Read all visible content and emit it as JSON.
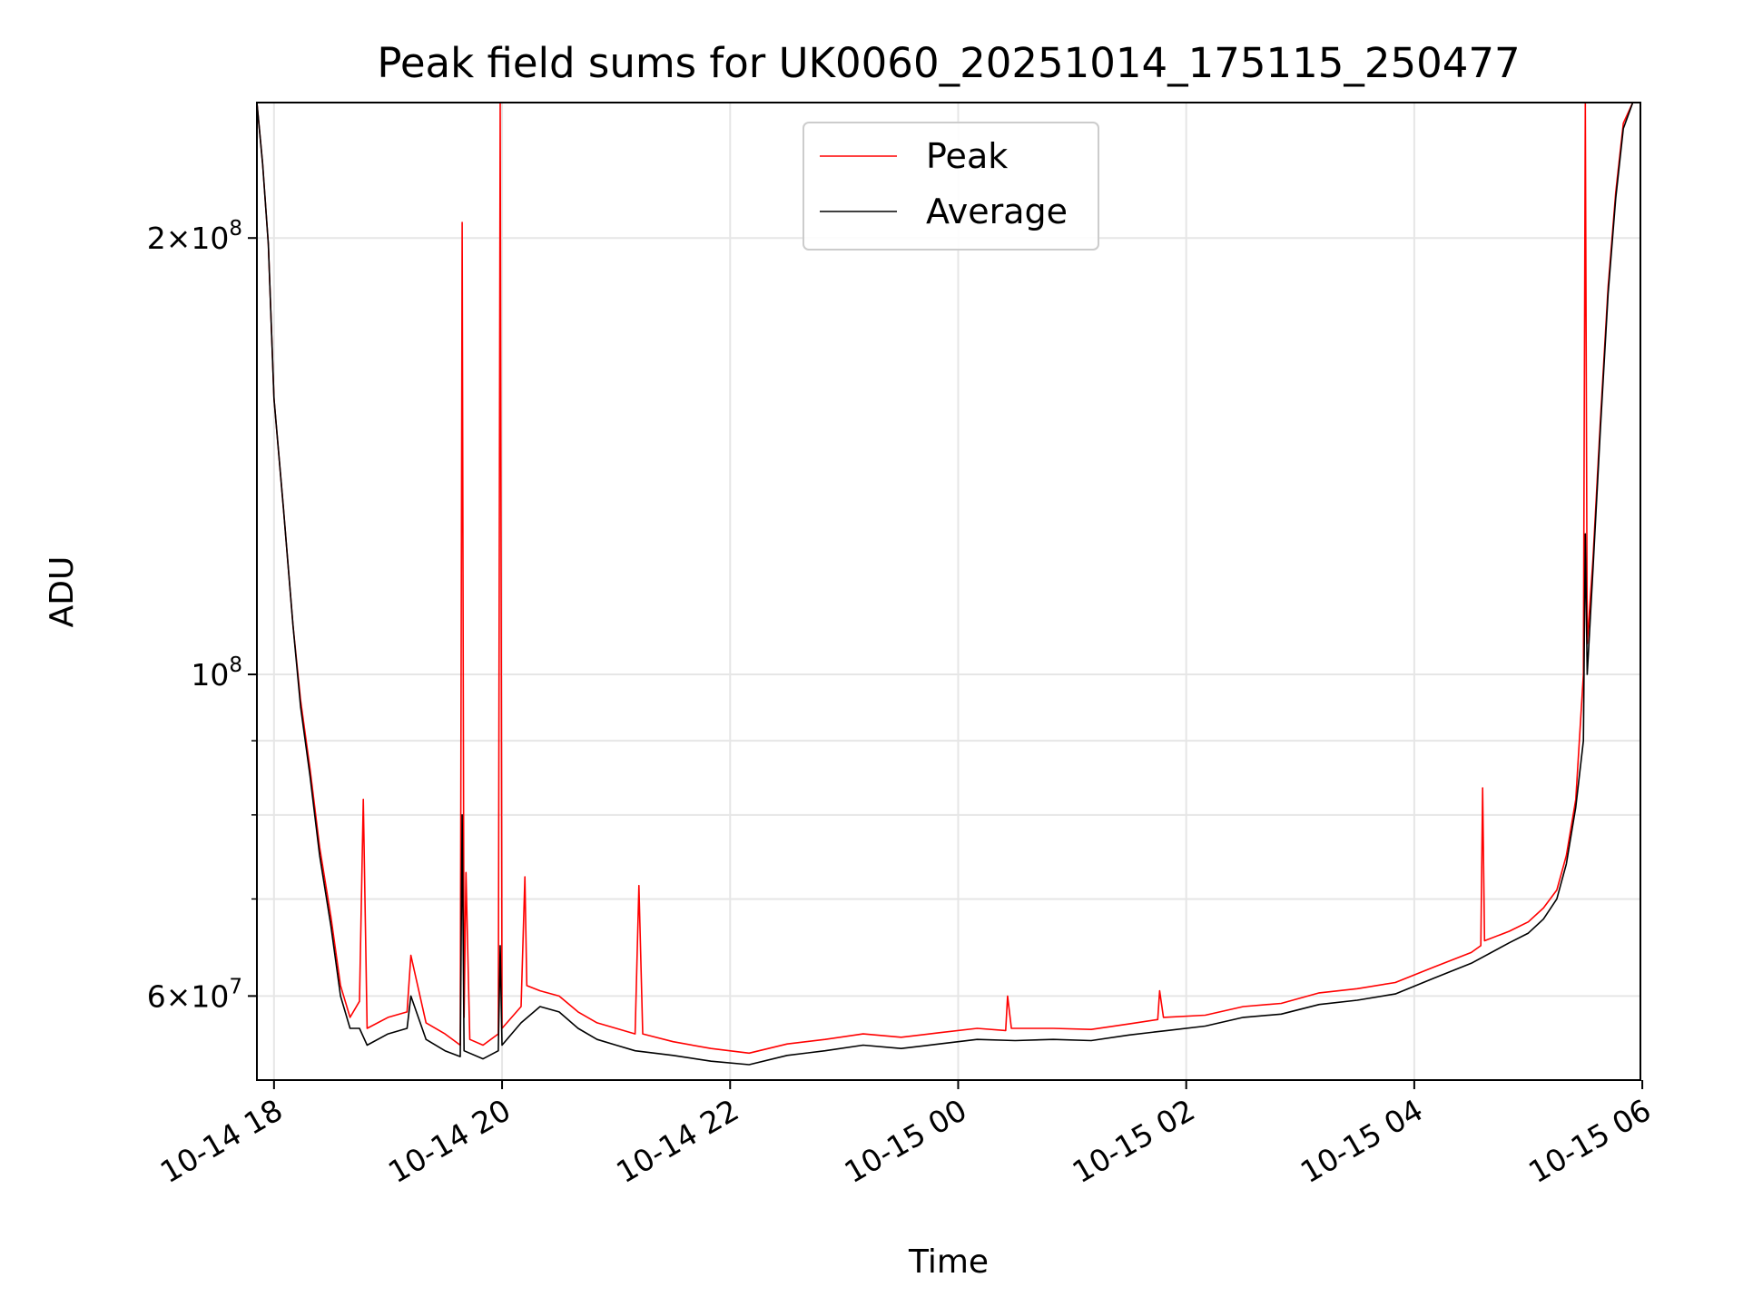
{
  "chart_data": {
    "type": "line",
    "title": "Peak field sums for UK0060_20251014_175115_250477",
    "xlabel": "Time",
    "ylabel": "ADU",
    "x_axis": {
      "kind": "time",
      "range": [
        "2025-10-14 17:51",
        "2025-10-15 05:59"
      ],
      "ticks": [
        {
          "t": "2025-10-14 18:00",
          "label": "10-14 18"
        },
        {
          "t": "2025-10-14 20:00",
          "label": "10-14 20"
        },
        {
          "t": "2025-10-14 22:00",
          "label": "10-14 22"
        },
        {
          "t": "2025-10-15 00:00",
          "label": "10-15 00"
        },
        {
          "t": "2025-10-15 02:00",
          "label": "10-15 02"
        },
        {
          "t": "2025-10-15 04:00",
          "label": "10-15 04"
        },
        {
          "t": "2025-10-15 06:00",
          "label": "10-15 06"
        }
      ]
    },
    "y_axis": {
      "scale": "log",
      "range": [
        52500000,
        248000000
      ],
      "major_ticks": [
        {
          "v": 60000000,
          "mantissa": "6",
          "exp": "7"
        },
        {
          "v": 100000000,
          "mantissa": "",
          "exp": "8"
        },
        {
          "v": 200000000,
          "mantissa": "2",
          "exp": "8"
        }
      ],
      "minor_ticks": [
        70000000,
        80000000,
        90000000
      ]
    },
    "grid": true,
    "legend_position": "top-center",
    "series": [
      {
        "name": "Peak",
        "color": "#ff0000",
        "points": [
          [
            "2025-10-14 17:51",
            248000000
          ],
          [
            "2025-10-14 17:54",
            225000000
          ],
          [
            "2025-10-14 17:57",
            198000000
          ],
          [
            "2025-10-14 18:00",
            155000000
          ],
          [
            "2025-10-14 18:05",
            130000000
          ],
          [
            "2025-10-14 18:10",
            108000000
          ],
          [
            "2025-10-14 18:14",
            96000000
          ],
          [
            "2025-10-14 18:19",
            86000000
          ],
          [
            "2025-10-14 18:24",
            76000000
          ],
          [
            "2025-10-14 18:30",
            68000000
          ],
          [
            "2025-10-14 18:35",
            61000000
          ],
          [
            "2025-10-14 18:40",
            58000000
          ],
          [
            "2025-10-14 18:45",
            59500000
          ],
          [
            "2025-10-14 18:47",
            82000000
          ],
          [
            "2025-10-14 18:49",
            57000000
          ],
          [
            "2025-10-14 19:00",
            58000000
          ],
          [
            "2025-10-14 19:10",
            58500000
          ],
          [
            "2025-10-14 19:12",
            64000000
          ],
          [
            "2025-10-14 19:20",
            57500000
          ],
          [
            "2025-10-14 19:30",
            56500000
          ],
          [
            "2025-10-14 19:38",
            55500000
          ],
          [
            "2025-10-14 19:39",
            205000000
          ],
          [
            "2025-10-14 19:40",
            58000000
          ],
          [
            "2025-10-14 19:41",
            73000000
          ],
          [
            "2025-10-14 19:43",
            56000000
          ],
          [
            "2025-10-14 19:50",
            55500000
          ],
          [
            "2025-10-14 19:58",
            56500000
          ],
          [
            "2025-10-14 19:59",
            248000000
          ],
          [
            "2025-10-14 20:00",
            57000000
          ],
          [
            "2025-10-14 20:10",
            59000000
          ],
          [
            "2025-10-14 20:12",
            72500000
          ],
          [
            "2025-10-14 20:13",
            61000000
          ],
          [
            "2025-10-14 20:20",
            60500000
          ],
          [
            "2025-10-14 20:30",
            60000000
          ],
          [
            "2025-10-14 20:40",
            58500000
          ],
          [
            "2025-10-14 20:50",
            57500000
          ],
          [
            "2025-10-14 21:00",
            57000000
          ],
          [
            "2025-10-14 21:10",
            56500000
          ],
          [
            "2025-10-14 21:12",
            71500000
          ],
          [
            "2025-10-14 21:14",
            56500000
          ],
          [
            "2025-10-14 21:30",
            55800000
          ],
          [
            "2025-10-14 21:50",
            55200000
          ],
          [
            "2025-10-14 22:10",
            54800000
          ],
          [
            "2025-10-14 22:30",
            55600000
          ],
          [
            "2025-10-14 22:50",
            56000000
          ],
          [
            "2025-10-14 23:10",
            56500000
          ],
          [
            "2025-10-14 23:30",
            56200000
          ],
          [
            "2025-10-14 23:50",
            56600000
          ],
          [
            "2025-10-15 00:10",
            57000000
          ],
          [
            "2025-10-15 00:25",
            56800000
          ],
          [
            "2025-10-15 00:26",
            60000000
          ],
          [
            "2025-10-15 00:28",
            57000000
          ],
          [
            "2025-10-15 00:50",
            57000000
          ],
          [
            "2025-10-15 01:10",
            56900000
          ],
          [
            "2025-10-15 01:30",
            57400000
          ],
          [
            "2025-10-15 01:45",
            57800000
          ],
          [
            "2025-10-15 01:46",
            60500000
          ],
          [
            "2025-10-15 01:48",
            58000000
          ],
          [
            "2025-10-15 02:10",
            58200000
          ],
          [
            "2025-10-15 02:30",
            59000000
          ],
          [
            "2025-10-15 02:50",
            59300000
          ],
          [
            "2025-10-15 03:10",
            60300000
          ],
          [
            "2025-10-15 03:30",
            60700000
          ],
          [
            "2025-10-15 03:50",
            61300000
          ],
          [
            "2025-10-15 04:10",
            62800000
          ],
          [
            "2025-10-15 04:30",
            64300000
          ],
          [
            "2025-10-15 04:35",
            65000000
          ],
          [
            "2025-10-15 04:36",
            83500000
          ],
          [
            "2025-10-15 04:37",
            65500000
          ],
          [
            "2025-10-15 04:50",
            66500000
          ],
          [
            "2025-10-15 05:00",
            67500000
          ],
          [
            "2025-10-15 05:08",
            69000000
          ],
          [
            "2025-10-15 05:15",
            71000000
          ],
          [
            "2025-10-15 05:20",
            75000000
          ],
          [
            "2025-10-15 05:25",
            82000000
          ],
          [
            "2025-10-15 05:29",
            100000000
          ],
          [
            "2025-10-15 05:30",
            248000000
          ],
          [
            "2025-10-15 05:31",
            105000000
          ],
          [
            "2025-10-15 05:34",
            120000000
          ],
          [
            "2025-10-15 05:38",
            150000000
          ],
          [
            "2025-10-15 05:42",
            185000000
          ],
          [
            "2025-10-15 05:46",
            215000000
          ],
          [
            "2025-10-15 05:50",
            240000000
          ],
          [
            "2025-10-15 05:55",
            248000000
          ],
          [
            "2025-10-15 05:59",
            248000000
          ]
        ]
      },
      {
        "name": "Average",
        "color": "#000000",
        "points": [
          [
            "2025-10-14 17:51",
            248000000
          ],
          [
            "2025-10-14 17:54",
            225000000
          ],
          [
            "2025-10-14 17:57",
            198000000
          ],
          [
            "2025-10-14 18:00",
            155000000
          ],
          [
            "2025-10-14 18:05",
            130000000
          ],
          [
            "2025-10-14 18:10",
            108000000
          ],
          [
            "2025-10-14 18:14",
            95000000
          ],
          [
            "2025-10-14 18:19",
            85000000
          ],
          [
            "2025-10-14 18:24",
            75000000
          ],
          [
            "2025-10-14 18:30",
            67000000
          ],
          [
            "2025-10-14 18:35",
            60000000
          ],
          [
            "2025-10-14 18:40",
            57000000
          ],
          [
            "2025-10-14 18:45",
            57000000
          ],
          [
            "2025-10-14 18:49",
            55500000
          ],
          [
            "2025-10-14 19:00",
            56500000
          ],
          [
            "2025-10-14 19:10",
            57000000
          ],
          [
            "2025-10-14 19:12",
            60000000
          ],
          [
            "2025-10-14 19:20",
            56000000
          ],
          [
            "2025-10-14 19:30",
            55000000
          ],
          [
            "2025-10-14 19:38",
            54500000
          ],
          [
            "2025-10-14 19:39",
            80000000
          ],
          [
            "2025-10-14 19:40",
            55000000
          ],
          [
            "2025-10-14 19:50",
            54300000
          ],
          [
            "2025-10-14 19:58",
            55000000
          ],
          [
            "2025-10-14 19:59",
            65000000
          ],
          [
            "2025-10-14 20:00",
            55500000
          ],
          [
            "2025-10-14 20:10",
            57500000
          ],
          [
            "2025-10-14 20:20",
            59000000
          ],
          [
            "2025-10-14 20:30",
            58500000
          ],
          [
            "2025-10-14 20:40",
            57000000
          ],
          [
            "2025-10-14 20:50",
            56000000
          ],
          [
            "2025-10-14 21:00",
            55500000
          ],
          [
            "2025-10-14 21:10",
            55000000
          ],
          [
            "2025-10-14 21:30",
            54600000
          ],
          [
            "2025-10-14 21:50",
            54100000
          ],
          [
            "2025-10-14 22:10",
            53800000
          ],
          [
            "2025-10-14 22:30",
            54600000
          ],
          [
            "2025-10-14 22:50",
            55000000
          ],
          [
            "2025-10-14 23:10",
            55500000
          ],
          [
            "2025-10-14 23:30",
            55200000
          ],
          [
            "2025-10-14 23:50",
            55600000
          ],
          [
            "2025-10-15 00:10",
            56000000
          ],
          [
            "2025-10-15 00:30",
            55900000
          ],
          [
            "2025-10-15 00:50",
            56000000
          ],
          [
            "2025-10-15 01:10",
            55900000
          ],
          [
            "2025-10-15 01:30",
            56400000
          ],
          [
            "2025-10-15 01:50",
            56800000
          ],
          [
            "2025-10-15 02:10",
            57200000
          ],
          [
            "2025-10-15 02:30",
            58000000
          ],
          [
            "2025-10-15 02:50",
            58300000
          ],
          [
            "2025-10-15 03:10",
            59200000
          ],
          [
            "2025-10-15 03:30",
            59600000
          ],
          [
            "2025-10-15 03:50",
            60200000
          ],
          [
            "2025-10-15 04:10",
            61700000
          ],
          [
            "2025-10-15 04:30",
            63200000
          ],
          [
            "2025-10-15 04:50",
            65300000
          ],
          [
            "2025-10-15 05:00",
            66300000
          ],
          [
            "2025-10-15 05:08",
            67800000
          ],
          [
            "2025-10-15 05:15",
            70000000
          ],
          [
            "2025-10-15 05:20",
            74000000
          ],
          [
            "2025-10-15 05:25",
            81000000
          ],
          [
            "2025-10-15 05:29",
            90000000
          ],
          [
            "2025-10-15 05:30",
            125000000
          ],
          [
            "2025-10-15 05:31",
            100000000
          ],
          [
            "2025-10-15 05:34",
            118000000
          ],
          [
            "2025-10-15 05:38",
            148000000
          ],
          [
            "2025-10-15 05:42",
            183000000
          ],
          [
            "2025-10-15 05:46",
            213000000
          ],
          [
            "2025-10-15 05:50",
            238000000
          ],
          [
            "2025-10-15 05:55",
            248000000
          ],
          [
            "2025-10-15 05:59",
            248000000
          ]
        ]
      }
    ]
  }
}
